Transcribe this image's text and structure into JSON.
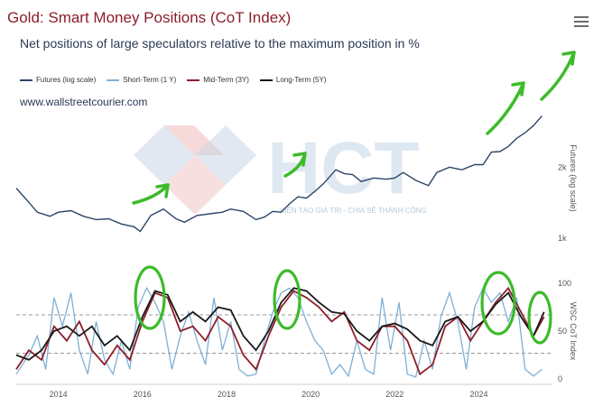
{
  "title": "Gold: Smart Money Positions (CoT Index)",
  "subtitle": "Net positions of large speculators relative to the maximum position in %",
  "website": "www.wallstreetcourier.com",
  "watermark_brand": "HCT",
  "watermark_tagline": "KIẾN TẠO GIÁ TRỊ - CHIA SẺ THÀNH CÔNG",
  "menu_icon": "hamburger-menu-icon",
  "colors": {
    "futures": "#2c4668",
    "short_term": "#7fb0d6",
    "mid_term": "#8e1e2a",
    "long_term": "#1a1a1a",
    "threshold": "#777777",
    "annotation": "#3dbb2a"
  },
  "chart_data": [
    {
      "type": "line",
      "title": "Gold: Smart Money Positions (CoT Index)",
      "ylabel": "Futures (log scale)",
      "ylog": true,
      "ytick_labels": [
        "2k",
        "1k"
      ],
      "ytick_values": [
        2000,
        1000
      ],
      "ylim": [
        950,
        3400
      ],
      "xlim": [
        2013.0,
        2025.75
      ],
      "series": [
        {
          "name": "Futures (log scale)",
          "x": [
            2013.0,
            2013.3,
            2013.5,
            2013.8,
            2014.0,
            2014.3,
            2014.6,
            2014.9,
            2015.2,
            2015.5,
            2015.8,
            2015.95,
            2016.2,
            2016.5,
            2016.8,
            2017.0,
            2017.3,
            2017.6,
            2017.9,
            2018.1,
            2018.4,
            2018.7,
            2018.9,
            2019.1,
            2019.3,
            2019.5,
            2019.7,
            2019.9,
            2020.1,
            2020.3,
            2020.6,
            2020.8,
            2021.0,
            2021.2,
            2021.5,
            2021.8,
            2022.0,
            2022.2,
            2022.5,
            2022.8,
            2023.0,
            2023.3,
            2023.6,
            2023.9,
            2024.1,
            2024.3,
            2024.5,
            2024.7,
            2024.9,
            2025.1,
            2025.3,
            2025.5
          ],
          "values": [
            1630,
            1420,
            1290,
            1240,
            1290,
            1310,
            1240,
            1200,
            1210,
            1150,
            1120,
            1070,
            1250,
            1330,
            1210,
            1170,
            1250,
            1270,
            1290,
            1330,
            1300,
            1200,
            1230,
            1300,
            1290,
            1400,
            1500,
            1480,
            1580,
            1700,
            1950,
            1880,
            1860,
            1740,
            1800,
            1780,
            1800,
            1900,
            1760,
            1670,
            1900,
            2000,
            1950,
            2050,
            2050,
            2320,
            2330,
            2450,
            2650,
            2800,
            3000,
            3300
          ]
        }
      ]
    },
    {
      "type": "line",
      "ylabel": "WSC CoT Index",
      "ytick_labels": [
        "100",
        "50",
        "0"
      ],
      "ytick_values": [
        100,
        50,
        0
      ],
      "ylim": [
        0,
        100
      ],
      "xlim": [
        2013.0,
        2025.75
      ],
      "xtick_labels": [
        "2014",
        "2016",
        "2018",
        "2020",
        "2022",
        "2024"
      ],
      "xtick_values": [
        2014,
        2016,
        2018,
        2020,
        2022,
        2024
      ],
      "thresholds": [
        67,
        27
      ],
      "series": [
        {
          "name": "Short-Term (1 Y)",
          "x": [
            2013.0,
            2013.3,
            2013.5,
            2013.7,
            2013.9,
            2014.1,
            2014.3,
            2014.5,
            2014.7,
            2014.9,
            2015.1,
            2015.3,
            2015.5,
            2015.7,
            2015.9,
            2016.1,
            2016.3,
            2016.5,
            2016.7,
            2016.9,
            2017.1,
            2017.3,
            2017.5,
            2017.7,
            2017.9,
            2018.1,
            2018.3,
            2018.5,
            2018.7,
            2018.9,
            2019.1,
            2019.3,
            2019.5,
            2019.7,
            2019.9,
            2020.1,
            2020.3,
            2020.5,
            2020.7,
            2020.9,
            2021.1,
            2021.3,
            2021.5,
            2021.7,
            2021.9,
            2022.1,
            2022.3,
            2022.5,
            2022.7,
            2022.9,
            2023.1,
            2023.3,
            2023.5,
            2023.7,
            2023.9,
            2024.1,
            2024.3,
            2024.5,
            2024.7,
            2024.9,
            2025.1,
            2025.3,
            2025.5
          ],
          "values": [
            5,
            25,
            45,
            10,
            85,
            55,
            90,
            30,
            5,
            60,
            20,
            5,
            40,
            10,
            75,
            95,
            80,
            60,
            10,
            45,
            70,
            40,
            15,
            85,
            30,
            60,
            10,
            3,
            5,
            40,
            70,
            90,
            95,
            85,
            60,
            40,
            30,
            5,
            15,
            3,
            40,
            10,
            5,
            85,
            30,
            80,
            5,
            2,
            40,
            10,
            65,
            90,
            60,
            10,
            75,
            95,
            80,
            90,
            60,
            85,
            10,
            3,
            10
          ]
        },
        {
          "name": "Mid-Term (3Y)",
          "x": [
            2013.0,
            2013.3,
            2013.6,
            2013.9,
            2014.2,
            2014.5,
            2014.8,
            2015.1,
            2015.4,
            2015.7,
            2016.0,
            2016.3,
            2016.6,
            2016.9,
            2017.2,
            2017.5,
            2017.8,
            2018.1,
            2018.4,
            2018.7,
            2019.0,
            2019.3,
            2019.6,
            2019.9,
            2020.2,
            2020.5,
            2020.8,
            2021.1,
            2021.4,
            2021.7,
            2022.0,
            2022.3,
            2022.6,
            2022.9,
            2023.2,
            2023.5,
            2023.8,
            2024.1,
            2024.4,
            2024.7,
            2025.0,
            2025.3,
            2025.55
          ],
          "values": [
            10,
            30,
            20,
            55,
            40,
            60,
            30,
            15,
            35,
            20,
            60,
            90,
            85,
            50,
            55,
            40,
            65,
            55,
            25,
            10,
            45,
            75,
            92,
            85,
            75,
            60,
            70,
            40,
            30,
            55,
            55,
            40,
            5,
            15,
            55,
            65,
            40,
            60,
            80,
            95,
            70,
            45,
            65
          ]
        },
        {
          "name": "Long-Term (5Y)",
          "x": [
            2013.0,
            2013.3,
            2013.6,
            2013.9,
            2014.2,
            2014.5,
            2014.8,
            2015.1,
            2015.4,
            2015.7,
            2016.0,
            2016.3,
            2016.6,
            2016.9,
            2017.2,
            2017.5,
            2017.8,
            2018.1,
            2018.4,
            2018.7,
            2019.0,
            2019.3,
            2019.6,
            2019.9,
            2020.2,
            2020.5,
            2020.8,
            2021.1,
            2021.4,
            2021.7,
            2022.0,
            2022.3,
            2022.6,
            2022.9,
            2023.2,
            2023.5,
            2023.8,
            2024.1,
            2024.4,
            2024.7,
            2025.0,
            2025.3,
            2025.55
          ],
          "values": [
            25,
            20,
            30,
            50,
            55,
            45,
            55,
            35,
            45,
            30,
            65,
            92,
            88,
            60,
            70,
            60,
            75,
            72,
            45,
            30,
            50,
            80,
            95,
            92,
            80,
            70,
            68,
            50,
            40,
            55,
            58,
            52,
            40,
            35,
            60,
            65,
            50,
            60,
            78,
            90,
            65,
            45,
            70
          ]
        }
      ]
    }
  ]
}
